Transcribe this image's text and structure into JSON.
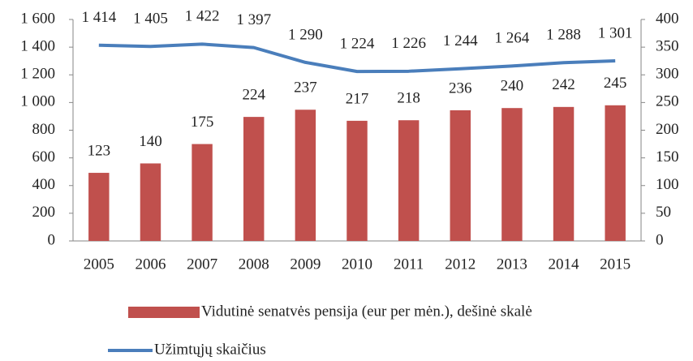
{
  "chart_data": {
    "type": "bar_line",
    "categories": [
      "2005",
      "2006",
      "2007",
      "2008",
      "2009",
      "2010",
      "2011",
      "2012",
      "2013",
      "2014",
      "2015"
    ],
    "series": [
      {
        "name": "Vidutinė senatvės pensija (eur per mėn.), dešinė skalė",
        "color": "#c0504d",
        "type": "bar",
        "axis": "y2",
        "values": [
          123,
          140,
          175,
          224,
          237,
          217,
          218,
          236,
          240,
          242,
          245
        ]
      },
      {
        "name": "Užimtųjų skaičius",
        "color": "#4a7ebb",
        "type": "line",
        "axis": "y",
        "values": [
          1414,
          1405,
          1422,
          1397,
          1290,
          1224,
          1226,
          1244,
          1264,
          1288,
          1301
        ],
        "value_labels": [
          "1 414",
          "1 405",
          "1 422",
          "1 397",
          "1 290",
          "1 224",
          "1 226",
          "1 244",
          "1 264",
          "1 288",
          "1 301"
        ]
      }
    ],
    "ylim": [
      0,
      1600
    ],
    "yticks": [
      0,
      200,
      400,
      600,
      800,
      {
        "value": 1000,
        "label": "1 000"
      },
      {
        "value": 1200,
        "label": "1 200"
      },
      {
        "value": 1400,
        "label": "1 400"
      },
      {
        "value": 1600,
        "label": "1 600"
      }
    ],
    "y2lim": [
      0,
      400
    ],
    "y2ticks": [
      0,
      50,
      100,
      150,
      200,
      250,
      300,
      350,
      400
    ],
    "legend": "bottom"
  }
}
